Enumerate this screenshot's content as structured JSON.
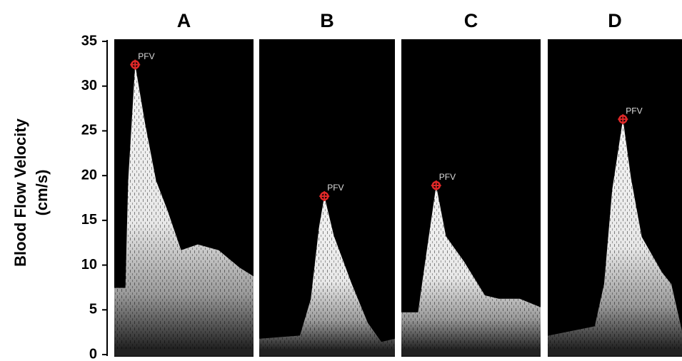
{
  "chart_data": {
    "type": "doppler",
    "ylabel": [
      "Blood Flow Velocity",
      "(cm/s)"
    ],
    "categories": [
      "A",
      "B",
      "C",
      "D"
    ],
    "series": [
      {
        "name": "PFV",
        "color": "#e02828",
        "values": [
          32.4,
          17.7,
          18.9,
          26.3
        ]
      }
    ],
    "ylim": [
      0,
      35
    ],
    "yticks": [
      0,
      5,
      10,
      15,
      20,
      25,
      30,
      35
    ]
  }
}
